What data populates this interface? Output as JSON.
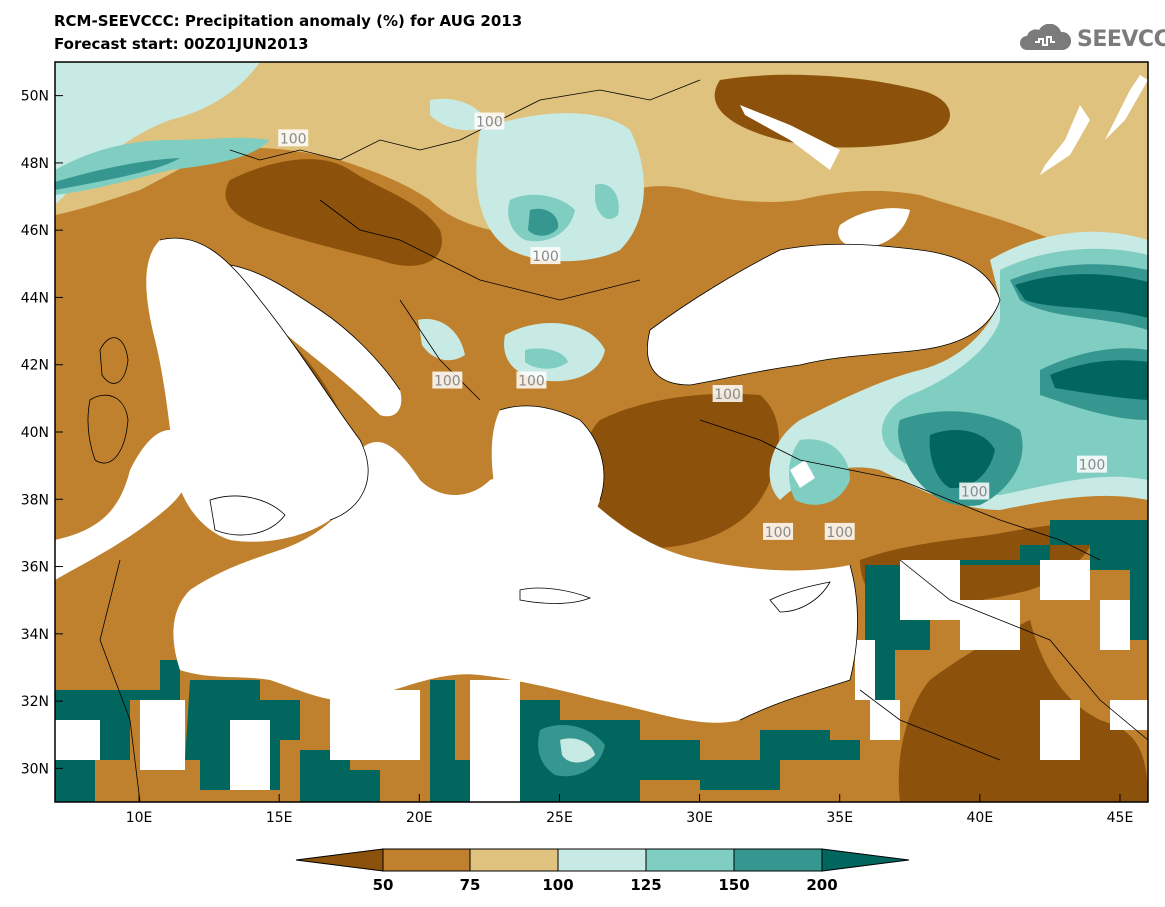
{
  "header": {
    "title": "RCM-SEEVCCC: Precipitation anomaly (%) for AUG 2013",
    "subtitle": "Forecast start: 00Z01JUN2013",
    "logo_text": "SEEVCCC"
  },
  "map": {
    "lon_range": [
      7,
      46
    ],
    "lat_range": [
      29,
      51
    ],
    "lat_ticks": [
      {
        "value": 30,
        "label": "30N"
      },
      {
        "value": 32,
        "label": "32N"
      },
      {
        "value": 34,
        "label": "34N"
      },
      {
        "value": 36,
        "label": "36N"
      },
      {
        "value": 38,
        "label": "38N"
      },
      {
        "value": 40,
        "label": "40N"
      },
      {
        "value": 42,
        "label": "42N"
      },
      {
        "value": 44,
        "label": "44N"
      },
      {
        "value": 46,
        "label": "46N"
      },
      {
        "value": 48,
        "label": "48N"
      },
      {
        "value": 50,
        "label": "50N"
      }
    ],
    "lon_ticks": [
      {
        "value": 10,
        "label": "10E"
      },
      {
        "value": 15,
        "label": "15E"
      },
      {
        "value": 20,
        "label": "20E"
      },
      {
        "value": 25,
        "label": "25E"
      },
      {
        "value": 30,
        "label": "30E"
      },
      {
        "value": 35,
        "label": "35E"
      },
      {
        "value": 40,
        "label": "40E"
      },
      {
        "value": 45,
        "label": "45E"
      }
    ],
    "contour_labels": [
      {
        "text": "100",
        "lon": 15.5,
        "lat": 48.7
      },
      {
        "text": "100",
        "lon": 22.5,
        "lat": 49.2
      },
      {
        "text": "100",
        "lon": 24.5,
        "lat": 45.2
      },
      {
        "text": "100",
        "lon": 21.0,
        "lat": 41.5
      },
      {
        "text": "100",
        "lon": 24.0,
        "lat": 41.5
      },
      {
        "text": "100",
        "lon": 31.0,
        "lat": 41.1
      },
      {
        "text": "100",
        "lon": 32.8,
        "lat": 37.0
      },
      {
        "text": "100",
        "lon": 35.0,
        "lat": 37.0
      },
      {
        "text": "100",
        "lon": 39.8,
        "lat": 38.2
      },
      {
        "text": "100",
        "lon": 44.0,
        "lat": 39.0
      }
    ]
  },
  "colorbar": {
    "levels": [
      "50",
      "75",
      "100",
      "125",
      "150",
      "200"
    ],
    "colors": {
      "below_50": "#8c510a",
      "50_75": "#bf812d",
      "75_100": "#dfc27d",
      "100_125": "#c7eae5",
      "125_150": "#80cdc1",
      "150_200": "#35978f",
      "above_200": "#01665e"
    }
  }
}
